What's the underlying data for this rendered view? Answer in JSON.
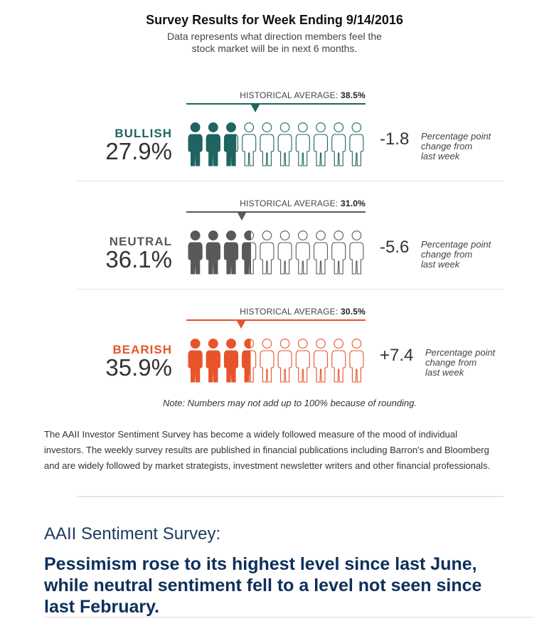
{
  "header": {
    "title": "Survey Results for Week Ending 9/14/2016",
    "subtitle_line1": "Data represents what direction members feel the",
    "subtitle_line2": "stock market will be in next 6 months."
  },
  "chart_data": {
    "type": "pictograph",
    "historical_label": "HISTORICAL AVERAGE:",
    "change_note_line1": "Percentage point",
    "change_note_line2": "change from",
    "change_note_line3": "last week",
    "rows": [
      {
        "name": "BULLISH",
        "percent_text": "27.9%",
        "value": 27.9,
        "hist_avg_text": "38.5%",
        "hist_avg": 38.5,
        "change_text": "-1.8",
        "change": -1.8,
        "color": "#1f6461"
      },
      {
        "name": "NEUTRAL",
        "percent_text": "36.1%",
        "value": 36.1,
        "hist_avg_text": "31.0%",
        "hist_avg": 31.0,
        "change_text": "-5.6",
        "change": -5.6,
        "color": "#595959"
      },
      {
        "name": "BEARISH",
        "percent_text": "35.9%",
        "value": 35.9,
        "hist_avg_text": "30.5%",
        "hist_avg": 30.5,
        "change_text": "+7.4",
        "change": 7.4,
        "color": "#e8532a"
      }
    ]
  },
  "footer": {
    "note": "Note: Numbers may not add up to 100% because of rounding.",
    "body_line1": "The AAII Investor Sentiment Survey has become a widely followed measure of the mood of individual",
    "body_line2": "investors. The weekly survey results are published in financial publications including Barron's and Bloomberg",
    "body_line3": "and are widely followed by market strategists, investment newsletter writers and other financial professionals.",
    "section_title": "AAII Sentiment Survey:",
    "headline_line1": "Pessimism rose to its highest level since last June,",
    "headline_line2": "while neutral sentiment fell to a level not seen since",
    "headline_line3": "last February."
  }
}
